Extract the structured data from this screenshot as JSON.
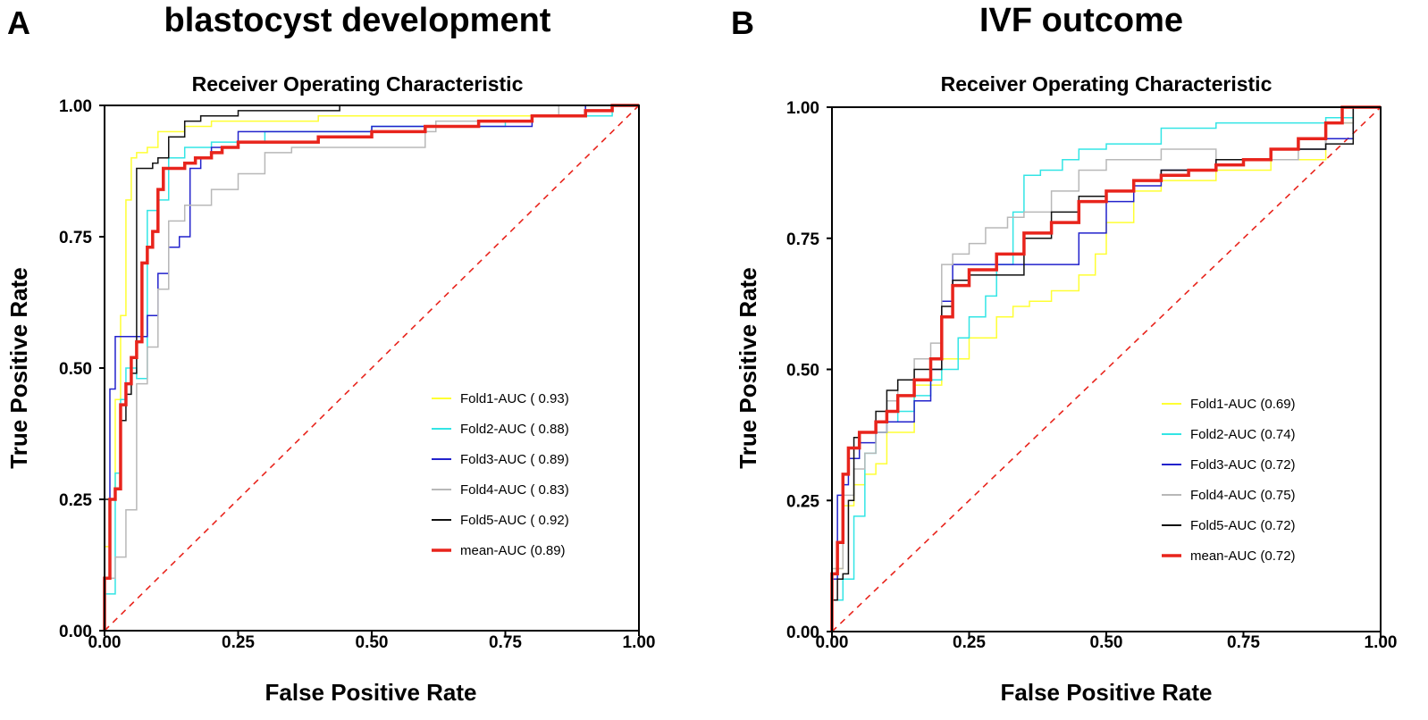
{
  "chart_data": [
    {
      "type": "line",
      "panel_letter": "A",
      "panel_title": "blastocyst development",
      "title": "Receiver Operating Characteristic",
      "xlabel": "False Positive Rate",
      "ylabel": "True Positive Rate",
      "xlim": [
        0,
        1
      ],
      "ylim": [
        0,
        1
      ],
      "xticks": [
        "0.00",
        "0.25",
        "0.50",
        "0.75",
        "1.00"
      ],
      "yticks": [
        "0.00",
        "0.25",
        "0.50",
        "0.75",
        "1.00"
      ],
      "legend_position": "bottom-right",
      "series": [
        {
          "name": "Fold1-AUC ( 0.93)",
          "color": "#ffff33",
          "width": 1.5,
          "x": [
            0,
            0.01,
            0.02,
            0.03,
            0.04,
            0.05,
            0.06,
            0.08,
            0.1,
            0.15,
            0.2,
            0.25,
            0.4,
            0.6,
            0.9,
            1
          ],
          "y": [
            0,
            0.16,
            0.25,
            0.44,
            0.6,
            0.82,
            0.9,
            0.91,
            0.92,
            0.95,
            0.96,
            0.97,
            0.97,
            0.98,
            0.98,
            1
          ]
        },
        {
          "name": "Fold2-AUC ( 0.88)",
          "color": "#33e5e5",
          "width": 1.5,
          "x": [
            0,
            0.02,
            0.03,
            0.04,
            0.06,
            0.08,
            0.1,
            0.12,
            0.15,
            0.2,
            0.3,
            0.5,
            0.75,
            0.8,
            0.95,
            1
          ],
          "y": [
            0,
            0.07,
            0.3,
            0.44,
            0.5,
            0.48,
            0.8,
            0.82,
            0.9,
            0.92,
            0.93,
            0.95,
            0.96,
            0.97,
            0.98,
            1
          ]
        },
        {
          "name": "Fold3-AUC ( 0.89)",
          "color": "#2222cc",
          "width": 1.5,
          "x": [
            0,
            0.01,
            0.02,
            0.04,
            0.06,
            0.08,
            0.1,
            0.12,
            0.14,
            0.16,
            0.18,
            0.2,
            0.25,
            0.5,
            0.8,
            0.9,
            1
          ],
          "y": [
            0,
            0.1,
            0.46,
            0.56,
            0.56,
            0.56,
            0.6,
            0.68,
            0.73,
            0.75,
            0.88,
            0.9,
            0.92,
            0.95,
            0.96,
            0.98,
            1
          ]
        },
        {
          "name": "Fold4-AUC ( 0.83)",
          "color": "#b8b8b8",
          "width": 1.5,
          "x": [
            0,
            0.02,
            0.04,
            0.06,
            0.08,
            0.1,
            0.12,
            0.15,
            0.2,
            0.25,
            0.3,
            0.35,
            0.5,
            0.6,
            0.62,
            0.8,
            0.85,
            1
          ],
          "y": [
            0,
            0.1,
            0.14,
            0.23,
            0.47,
            0.54,
            0.65,
            0.78,
            0.81,
            0.84,
            0.87,
            0.91,
            0.92,
            0.92,
            0.95,
            0.97,
            0.98,
            1
          ]
        },
        {
          "name": "Fold5-AUC ( 0.92)",
          "color": "#111111",
          "width": 1.5,
          "x": [
            0,
            0.01,
            0.02,
            0.03,
            0.04,
            0.05,
            0.06,
            0.08,
            0.09,
            0.1,
            0.12,
            0.15,
            0.18,
            0.2,
            0.25,
            0.44,
            0.45,
            1
          ],
          "y": [
            0,
            0.25,
            0.25,
            0.27,
            0.4,
            0.45,
            0.49,
            0.88,
            0.88,
            0.89,
            0.9,
            0.94,
            0.97,
            0.98,
            0.98,
            0.99,
            1,
            1
          ]
        },
        {
          "name": "mean-AUC (0.89)",
          "color": "#e8241c",
          "width": 3.5,
          "x": [
            0,
            0.01,
            0.02,
            0.03,
            0.04,
            0.05,
            0.06,
            0.07,
            0.08,
            0.09,
            0.1,
            0.11,
            0.12,
            0.13,
            0.15,
            0.17,
            0.2,
            0.22,
            0.25,
            0.3,
            0.4,
            0.5,
            0.6,
            0.7,
            0.8,
            0.9,
            0.95,
            1
          ],
          "y": [
            0,
            0.1,
            0.25,
            0.27,
            0.43,
            0.47,
            0.52,
            0.55,
            0.7,
            0.73,
            0.76,
            0.84,
            0.88,
            0.88,
            0.88,
            0.89,
            0.9,
            0.91,
            0.92,
            0.93,
            0.93,
            0.94,
            0.95,
            0.96,
            0.97,
            0.98,
            0.99,
            1
          ]
        },
        {
          "name": "chance",
          "color": "#e8241c",
          "width": 1.6,
          "dashed": true,
          "legend": false,
          "x": [
            0,
            1
          ],
          "y": [
            0,
            1
          ]
        }
      ]
    },
    {
      "type": "line",
      "panel_letter": "B",
      "panel_title": "IVF outcome",
      "title": "Receiver Operating Characteristic",
      "xlabel": "False Positive Rate",
      "ylabel": "True Positive Rate",
      "xlim": [
        0,
        1
      ],
      "ylim": [
        0,
        1
      ],
      "xticks": [
        "0.00",
        "0.25",
        "0.50",
        "0.75",
        "1.00"
      ],
      "yticks": [
        "0.00",
        "0.25",
        "0.50",
        "0.75",
        "1.00"
      ],
      "legend_position": "bottom-right",
      "series": [
        {
          "name": "Fold1-AUC (0.69)",
          "color": "#ffff33",
          "width": 1.5,
          "x": [
            0,
            0.02,
            0.04,
            0.06,
            0.08,
            0.1,
            0.15,
            0.2,
            0.25,
            0.3,
            0.33,
            0.36,
            0.4,
            0.45,
            0.48,
            0.5,
            0.55,
            0.6,
            0.7,
            0.8,
            0.9,
            0.95,
            1
          ],
          "y": [
            0,
            0.12,
            0.24,
            0.28,
            0.3,
            0.32,
            0.38,
            0.47,
            0.52,
            0.56,
            0.6,
            0.62,
            0.63,
            0.65,
            0.68,
            0.72,
            0.78,
            0.84,
            0.86,
            0.88,
            0.9,
            0.97,
            1
          ]
        },
        {
          "name": "Fold2-AUC (0.74)",
          "color": "#33e5e5",
          "width": 1.5,
          "x": [
            0,
            0.02,
            0.04,
            0.06,
            0.08,
            0.1,
            0.12,
            0.15,
            0.18,
            0.2,
            0.23,
            0.25,
            0.28,
            0.3,
            0.33,
            0.35,
            0.38,
            0.42,
            0.45,
            0.5,
            0.6,
            0.7,
            0.9,
            0.95,
            1
          ],
          "y": [
            0,
            0.06,
            0.1,
            0.22,
            0.34,
            0.38,
            0.4,
            0.42,
            0.45,
            0.48,
            0.5,
            0.56,
            0.6,
            0.64,
            0.7,
            0.8,
            0.87,
            0.88,
            0.9,
            0.92,
            0.93,
            0.96,
            0.97,
            0.98,
            1
          ]
        },
        {
          "name": "Fold3-AUC (0.72)",
          "color": "#2222cc",
          "width": 1.5,
          "x": [
            0,
            0.01,
            0.02,
            0.03,
            0.05,
            0.08,
            0.1,
            0.15,
            0.18,
            0.2,
            0.22,
            0.25,
            0.3,
            0.38,
            0.45,
            0.5,
            0.55,
            0.6,
            0.7,
            0.8,
            0.9,
            0.95,
            1
          ],
          "y": [
            0,
            0.1,
            0.26,
            0.28,
            0.33,
            0.36,
            0.38,
            0.4,
            0.44,
            0.5,
            0.63,
            0.7,
            0.7,
            0.7,
            0.7,
            0.76,
            0.82,
            0.85,
            0.88,
            0.9,
            0.92,
            0.94,
            1
          ]
        },
        {
          "name": "Fold4-AUC (0.75)",
          "color": "#b8b8b8",
          "width": 1.5,
          "x": [
            0,
            0.02,
            0.04,
            0.06,
            0.08,
            0.1,
            0.12,
            0.15,
            0.18,
            0.2,
            0.22,
            0.25,
            0.28,
            0.32,
            0.35,
            0.4,
            0.45,
            0.5,
            0.6,
            0.7,
            0.85,
            0.9,
            0.95,
            1
          ],
          "y": [
            0,
            0.12,
            0.26,
            0.31,
            0.34,
            0.38,
            0.44,
            0.48,
            0.52,
            0.55,
            0.7,
            0.72,
            0.74,
            0.77,
            0.79,
            0.8,
            0.84,
            0.88,
            0.9,
            0.92,
            0.9,
            0.92,
            0.97,
            1
          ]
        },
        {
          "name": "Fold5-AUC (0.72)",
          "color": "#111111",
          "width": 1.5,
          "x": [
            0,
            0.01,
            0.02,
            0.03,
            0.04,
            0.05,
            0.08,
            0.1,
            0.12,
            0.15,
            0.2,
            0.22,
            0.25,
            0.3,
            0.35,
            0.4,
            0.45,
            0.5,
            0.55,
            0.6,
            0.7,
            0.8,
            0.9,
            0.95,
            0.96,
            1
          ],
          "y": [
            0,
            0.06,
            0.1,
            0.11,
            0.25,
            0.37,
            0.38,
            0.42,
            0.46,
            0.48,
            0.5,
            0.62,
            0.67,
            0.68,
            0.68,
            0.75,
            0.8,
            0.83,
            0.84,
            0.86,
            0.88,
            0.9,
            0.92,
            0.93,
            1,
            1
          ]
        },
        {
          "name": "mean-AUC (0.72)",
          "color": "#e8241c",
          "width": 3.5,
          "x": [
            0,
            0.01,
            0.02,
            0.03,
            0.05,
            0.08,
            0.1,
            0.12,
            0.15,
            0.18,
            0.2,
            0.22,
            0.25,
            0.3,
            0.35,
            0.4,
            0.45,
            0.5,
            0.55,
            0.6,
            0.65,
            0.7,
            0.75,
            0.8,
            0.85,
            0.9,
            0.93,
            0.95,
            1
          ],
          "y": [
            0,
            0.11,
            0.17,
            0.3,
            0.35,
            0.38,
            0.4,
            0.42,
            0.45,
            0.48,
            0.52,
            0.6,
            0.66,
            0.69,
            0.72,
            0.76,
            0.78,
            0.82,
            0.84,
            0.86,
            0.87,
            0.88,
            0.89,
            0.9,
            0.92,
            0.94,
            0.97,
            1.0,
            1
          ]
        },
        {
          "name": "chance",
          "color": "#e8241c",
          "width": 1.6,
          "dashed": true,
          "legend": false,
          "x": [
            0,
            1
          ],
          "y": [
            0,
            1
          ]
        }
      ]
    }
  ]
}
